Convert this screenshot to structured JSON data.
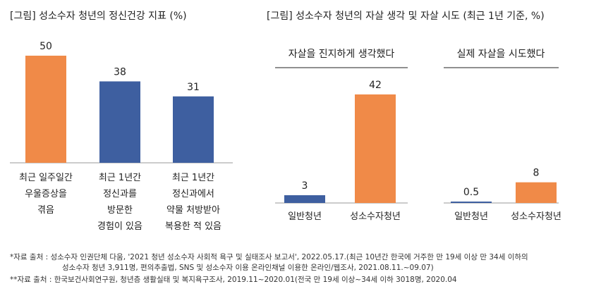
{
  "colors": {
    "orange": "#f08a48",
    "blue": "#3e5fa0",
    "text": "#222222",
    "axis": "#999999"
  },
  "chart_data": [
    {
      "type": "bar",
      "title": "[그림] 성소수자 청년의 정신건강 지표 (%)",
      "categories": [
        [
          "최근 일주일간",
          "우울증상을",
          "겪음"
        ],
        [
          "최근 1년간",
          "정신과를",
          "방문한",
          "경험이 있음"
        ],
        [
          "최근 1년간",
          "정신과에서",
          "약물 처방받아",
          "복용한 적 있음"
        ]
      ],
      "values": [
        50,
        38,
        31
      ],
      "value_labels": [
        "50",
        "38",
        "31"
      ],
      "colors": [
        "#f08a48",
        "#3e5fa0",
        "#3e5fa0"
      ],
      "ylim": [
        0,
        55
      ],
      "xlabel": "",
      "ylabel": ""
    },
    {
      "type": "bar",
      "title": "[그림] 성소수자 청년의 자살 생각 및 자살 시도 (최근 1년 기준, %)",
      "panels": [
        {
          "subtitle": "자살을 진지하게 생각했다",
          "categories": [
            "일반청년",
            "성소수자청년"
          ],
          "values": [
            3,
            42
          ],
          "value_labels": [
            "3",
            "42"
          ],
          "colors": [
            "#3e5fa0",
            "#f08a48"
          ],
          "ylim": [
            0,
            46
          ]
        },
        {
          "subtitle": "실제 자살을 시도했다",
          "categories": [
            "일반청년",
            "성소수자청년"
          ],
          "values": [
            0.5,
            8
          ],
          "value_labels": [
            "0.5",
            "8"
          ],
          "colors": [
            "#3e5fa0",
            "#f08a48"
          ],
          "ylim": [
            0,
            46
          ]
        }
      ]
    }
  ],
  "sources": [
    "*자료 출처 : 성소수자 인권단체 다움, '2021 청년 성소수자 사회적 욕구 및 실태조사 보고서', 2022.05.17.(최근 10년간 한국에 거주한 만 19세 이상 만 34세 이하의",
    "성소수자 청년 3,911명, 편의추출법, SNS 및 성소수자 이용 온라인채널 이용한 온라인/웹조사, 2021.08.11.~09.07)",
    "**자료 출처 : 한국보건사회연구원, 청년층 생활실태 및 복지욕구조사, 2019.11~2020.01(전국 만 19세 이상~34세 이하 3018명, 2020.04"
  ]
}
